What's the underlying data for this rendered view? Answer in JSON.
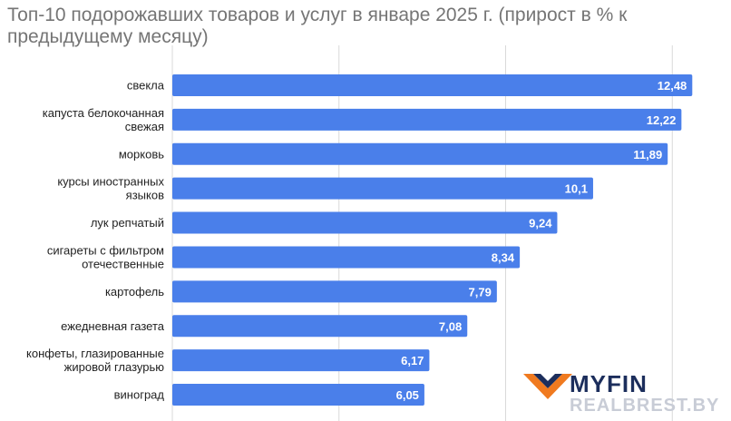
{
  "chart_data": {
    "type": "bar",
    "orientation": "horizontal",
    "title": "Топ-10 подорожавших товаров и услуг в январе 2025 г. (прирост в % к предыдущему месяцу)",
    "categories": [
      [
        "свекла"
      ],
      [
        "капуста белокочанная",
        "свежая"
      ],
      [
        "морковь"
      ],
      [
        "курсы иностранных",
        "языков"
      ],
      [
        "лук репчатый"
      ],
      [
        "сигареты с фильтром",
        "отечественные"
      ],
      [
        "картофель"
      ],
      [
        "ежедневная газета"
      ],
      [
        "конфеты, глазированные",
        "жировой глазурью"
      ],
      [
        "виноград"
      ]
    ],
    "values": [
      12.48,
      12.22,
      11.89,
      10.1,
      9.24,
      8.34,
      7.79,
      7.08,
      6.17,
      6.05
    ],
    "value_labels": [
      "12,48",
      "12,22",
      "11,89",
      "10,1",
      "9,24",
      "8,34",
      "7,79",
      "7,08",
      "6,17",
      "6,05"
    ],
    "bar_color": "#4A7FEA",
    "grid": true,
    "xlim": [
      0,
      12.8
    ]
  },
  "watermark": {
    "brand": "MYFIN",
    "subtitle": "REALBREST.BY",
    "colors": {
      "orange": "#F07A1F",
      "navy": "#1C2E5C"
    }
  }
}
